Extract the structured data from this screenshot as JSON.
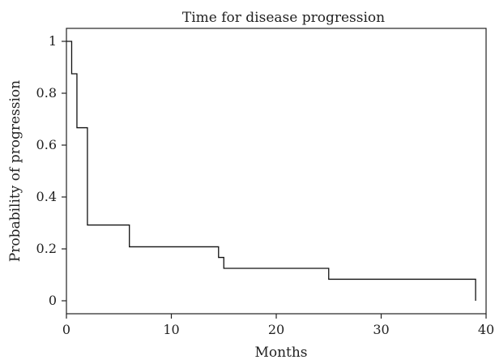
{
  "chart_data": {
    "type": "line",
    "step": "post",
    "title": "Time for disease progression",
    "xlabel": "Months",
    "ylabel": "Probability of progression",
    "xlim": [
      0,
      40
    ],
    "ylim": [
      -0.05,
      1.05
    ],
    "xticks": [
      0,
      10,
      20,
      30,
      40
    ],
    "xtick_labels": [
      "0",
      "10",
      "20",
      "30",
      "40"
    ],
    "yticks": [
      0,
      0.2,
      0.4,
      0.6,
      0.8,
      1
    ],
    "ytick_labels": [
      "0",
      "0.2",
      "0.4",
      "0.6",
      "0.8",
      "1"
    ],
    "grid": false,
    "legend": "none",
    "series": [
      {
        "x": [
          0,
          0.5,
          1,
          2,
          6,
          14.5,
          15,
          25,
          39
        ],
        "y": [
          1,
          0.875,
          0.667,
          0.292,
          0.208,
          0.167,
          0.125,
          0.083,
          0
        ]
      }
    ]
  }
}
